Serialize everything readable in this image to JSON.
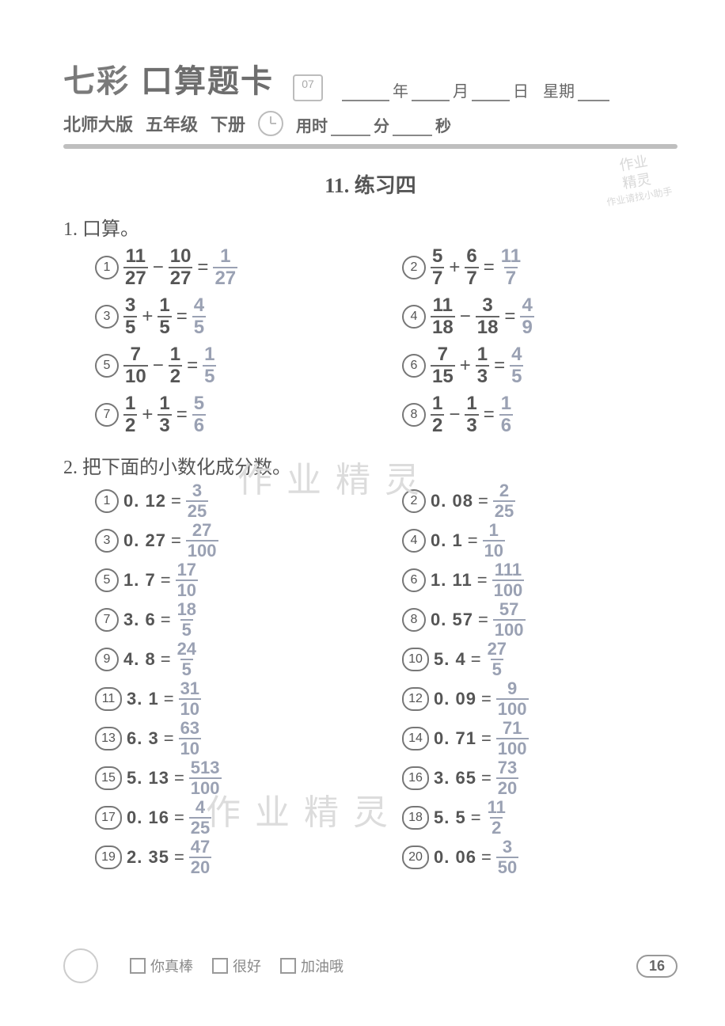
{
  "header": {
    "brand": "七彩",
    "title_rest": "口算题卡",
    "date_labels": {
      "year": "年",
      "month": "月",
      "day": "日",
      "weekday": "星期"
    },
    "edition": "北师大版",
    "grade": "五年级",
    "volume": "下册",
    "time_label": "用时",
    "minute": "分",
    "second": "秒"
  },
  "section_title": "11. 练习四",
  "q1": {
    "heading": "1. 口算。",
    "items": [
      {
        "n": "①",
        "a": {
          "n": "11",
          "d": "27"
        },
        "op": "−",
        "b": {
          "n": "10",
          "d": "27"
        },
        "ans": {
          "n": "1",
          "d": "27"
        }
      },
      {
        "n": "②",
        "a": {
          "n": "5",
          "d": "7"
        },
        "op": "+",
        "b": {
          "n": "6",
          "d": "7"
        },
        "ans": {
          "n": "11",
          "d": "7"
        }
      },
      {
        "n": "③",
        "a": {
          "n": "3",
          "d": "5"
        },
        "op": "+",
        "b": {
          "n": "1",
          "d": "5"
        },
        "ans": {
          "n": "4",
          "d": "5"
        }
      },
      {
        "n": "④",
        "a": {
          "n": "11",
          "d": "18"
        },
        "op": "−",
        "b": {
          "n": "3",
          "d": "18"
        },
        "ans": {
          "n": "4",
          "d": "9"
        }
      },
      {
        "n": "⑤",
        "a": {
          "n": "7",
          "d": "10"
        },
        "op": "−",
        "b": {
          "n": "1",
          "d": "2"
        },
        "ans": {
          "n": "1",
          "d": "5"
        }
      },
      {
        "n": "⑥",
        "a": {
          "n": "7",
          "d": "15"
        },
        "op": "+",
        "b": {
          "n": "1",
          "d": "3"
        },
        "ans": {
          "n": "4",
          "d": "5"
        }
      },
      {
        "n": "⑦",
        "a": {
          "n": "1",
          "d": "2"
        },
        "op": "+",
        "b": {
          "n": "1",
          "d": "3"
        },
        "ans": {
          "n": "5",
          "d": "6"
        }
      },
      {
        "n": "⑧",
        "a": {
          "n": "1",
          "d": "2"
        },
        "op": "−",
        "b": {
          "n": "1",
          "d": "3"
        },
        "ans": {
          "n": "1",
          "d": "6"
        }
      }
    ]
  },
  "q2": {
    "heading": "2. 把下面的小数化成分数。",
    "items": [
      {
        "n": "①",
        "dec": "0. 12",
        "ans": {
          "n": "3",
          "d": "25"
        }
      },
      {
        "n": "②",
        "dec": "0. 08",
        "ans": {
          "n": "2",
          "d": "25"
        }
      },
      {
        "n": "③",
        "dec": "0. 27",
        "ans": {
          "n": "27",
          "d": "100"
        }
      },
      {
        "n": "④",
        "dec": "0. 1",
        "ans": {
          "n": "1",
          "d": "10"
        }
      },
      {
        "n": "⑤",
        "dec": "1. 7",
        "ans": {
          "n": "17",
          "d": "10"
        }
      },
      {
        "n": "⑥",
        "dec": "1. 11",
        "ans": {
          "n": "111",
          "d": "100"
        }
      },
      {
        "n": "⑦",
        "dec": "3. 6",
        "ans": {
          "n": "18",
          "d": "5"
        }
      },
      {
        "n": "⑧",
        "dec": "0. 57",
        "ans": {
          "n": "57",
          "d": "100"
        }
      },
      {
        "n": "⑨",
        "dec": "4. 8",
        "ans": {
          "n": "24",
          "d": "5"
        }
      },
      {
        "n": "⑩",
        "dec": "5. 4",
        "ans": {
          "n": "27",
          "d": "5"
        }
      },
      {
        "n": "⑪",
        "dec": "3. 1",
        "ans": {
          "n": "31",
          "d": "10"
        }
      },
      {
        "n": "⑫",
        "dec": "0. 09",
        "ans": {
          "n": "9",
          "d": "100"
        }
      },
      {
        "n": "⑬",
        "dec": "6. 3",
        "ans": {
          "n": "63",
          "d": "10"
        }
      },
      {
        "n": "⑭",
        "dec": "0. 71",
        "ans": {
          "n": "71",
          "d": "100"
        }
      },
      {
        "n": "⑮",
        "dec": "5. 13",
        "ans": {
          "n": "513",
          "d": "100"
        }
      },
      {
        "n": "⑯",
        "dec": "3. 65",
        "ans": {
          "n": "73",
          "d": "20"
        }
      },
      {
        "n": "⑰",
        "dec": "0. 16",
        "ans": {
          "n": "4",
          "d": "25"
        }
      },
      {
        "n": "⑱",
        "dec": "5. 5",
        "ans": {
          "n": "11",
          "d": "2"
        }
      },
      {
        "n": "⑲",
        "dec": "2. 35",
        "ans": {
          "n": "47",
          "d": "20"
        }
      },
      {
        "n": "⑳",
        "dec": "0. 06",
        "ans": {
          "n": "3",
          "d": "50"
        }
      }
    ]
  },
  "footer": {
    "opts": [
      "你真棒",
      "很好",
      "加油哦"
    ],
    "page": "16"
  },
  "watermarks": [
    "作业精灵",
    "作业精灵"
  ],
  "stamp": [
    "作业",
    "精灵",
    "作业请找小助手"
  ]
}
